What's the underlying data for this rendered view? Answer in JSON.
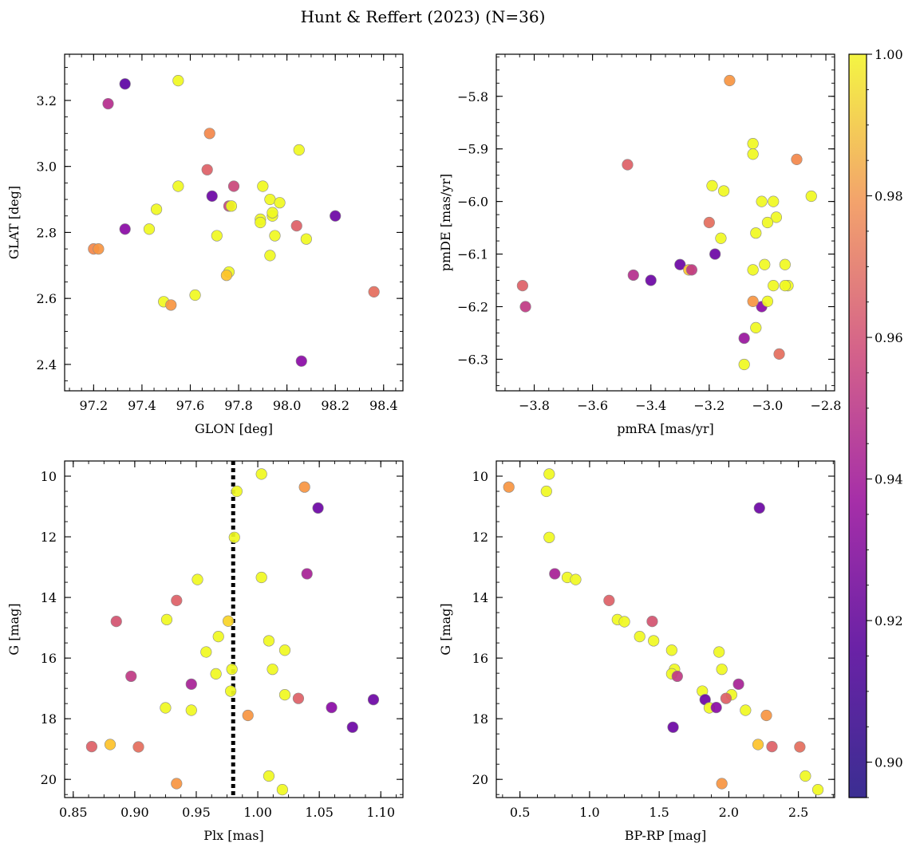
{
  "figure_title": "Hunt & Reffert (2023) (N=36)",
  "colors": {
    "colormap": "plasma",
    "marker_edge": "#8a8a8a",
    "vertical_line": "#000000"
  },
  "colorbar": {
    "range": [
      0.895,
      1.0
    ],
    "ticks": [
      0.9,
      0.92,
      0.94,
      0.96,
      0.98,
      1.0
    ],
    "tick_labels": [
      "0.90",
      "0.92",
      "0.94",
      "0.96",
      "0.98",
      "1.00"
    ]
  },
  "chart_data": [
    {
      "type": "scatter",
      "id": "glon-glat",
      "xlabel": "GLON [deg]",
      "ylabel": "GLAT [deg]",
      "xlim": [
        97.08,
        98.48
      ],
      "ylim": [
        2.32,
        3.34
      ],
      "y_inverted": false,
      "xticks": [
        97.2,
        97.4,
        97.6,
        97.8,
        98.0,
        98.2,
        98.4
      ],
      "xtick_labels": [
        "97.2",
        "97.4",
        "97.6",
        "97.8",
        "98.0",
        "98.2",
        "98.4"
      ],
      "yticks": [
        2.4,
        2.6,
        2.8,
        3.0,
        3.2
      ],
      "ytick_labels": [
        "2.4",
        "2.6",
        "2.8",
        "3.0",
        "3.2"
      ],
      "points": [
        {
          "x": 97.33,
          "y": 3.25,
          "c": 0.9
        },
        {
          "x": 97.26,
          "y": 3.19,
          "c": 0.93
        },
        {
          "x": 97.55,
          "y": 3.26,
          "c": 1.0
        },
        {
          "x": 97.68,
          "y": 3.1,
          "c": 0.965
        },
        {
          "x": 98.05,
          "y": 3.05,
          "c": 1.0
        },
        {
          "x": 97.67,
          "y": 2.99,
          "c": 0.95
        },
        {
          "x": 97.78,
          "y": 2.94,
          "c": 0.94
        },
        {
          "x": 97.55,
          "y": 2.94,
          "c": 1.0
        },
        {
          "x": 97.9,
          "y": 2.94,
          "c": 1.0
        },
        {
          "x": 97.69,
          "y": 2.91,
          "c": 0.905
        },
        {
          "x": 97.93,
          "y": 2.9,
          "c": 1.0
        },
        {
          "x": 97.97,
          "y": 2.89,
          "c": 1.0
        },
        {
          "x": 97.46,
          "y": 2.87,
          "c": 1.0
        },
        {
          "x": 97.76,
          "y": 2.88,
          "c": 0.94
        },
        {
          "x": 97.77,
          "y": 2.88,
          "c": 1.0
        },
        {
          "x": 98.2,
          "y": 2.85,
          "c": 0.905
        },
        {
          "x": 97.94,
          "y": 2.85,
          "c": 1.0
        },
        {
          "x": 97.94,
          "y": 2.86,
          "c": 1.0
        },
        {
          "x": 97.89,
          "y": 2.84,
          "c": 1.0
        },
        {
          "x": 97.89,
          "y": 2.83,
          "c": 1.0
        },
        {
          "x": 98.04,
          "y": 2.82,
          "c": 0.95
        },
        {
          "x": 97.43,
          "y": 2.81,
          "c": 1.0
        },
        {
          "x": 97.33,
          "y": 2.81,
          "c": 0.915
        },
        {
          "x": 97.71,
          "y": 2.79,
          "c": 1.0
        },
        {
          "x": 97.95,
          "y": 2.79,
          "c": 1.0
        },
        {
          "x": 98.08,
          "y": 2.78,
          "c": 1.0
        },
        {
          "x": 97.2,
          "y": 2.75,
          "c": 0.965
        },
        {
          "x": 97.22,
          "y": 2.75,
          "c": 0.97
        },
        {
          "x": 97.93,
          "y": 2.73,
          "c": 1.0
        },
        {
          "x": 97.76,
          "y": 2.68,
          "c": 1.0
        },
        {
          "x": 97.75,
          "y": 2.67,
          "c": 0.985
        },
        {
          "x": 97.62,
          "y": 2.61,
          "c": 1.0
        },
        {
          "x": 97.49,
          "y": 2.59,
          "c": 1.0
        },
        {
          "x": 97.52,
          "y": 2.58,
          "c": 0.97
        },
        {
          "x": 98.36,
          "y": 2.62,
          "c": 0.955
        },
        {
          "x": 98.06,
          "y": 2.41,
          "c": 0.915
        }
      ]
    },
    {
      "type": "scatter",
      "id": "pmra-pmde",
      "xlabel": "pmRA [mas/yr]",
      "ylabel": "pmDE [mas/yr]",
      "xlim": [
        -3.93,
        -2.77
      ],
      "ylim": [
        -6.36,
        -5.72
      ],
      "y_inverted": false,
      "xticks": [
        -3.8,
        -3.6,
        -3.4,
        -3.2,
        -3.0,
        -2.8
      ],
      "xtick_labels": [
        "−3.8",
        "−3.6",
        "−3.4",
        "−3.2",
        "−3.0",
        "−2.8"
      ],
      "yticks": [
        -6.3,
        -6.2,
        -6.1,
        -6.0,
        -5.9,
        -5.8
      ],
      "ytick_labels": [
        "−6.3",
        "−6.2",
        "−6.1",
        "−6.0",
        "−5.9",
        "−5.8"
      ],
      "points": [
        {
          "x": -3.13,
          "y": -5.77,
          "c": 0.97
        },
        {
          "x": -3.05,
          "y": -5.89,
          "c": 1.0
        },
        {
          "x": -3.05,
          "y": -5.91,
          "c": 1.0
        },
        {
          "x": -2.9,
          "y": -5.92,
          "c": 0.965
        },
        {
          "x": -3.48,
          "y": -5.93,
          "c": 0.95
        },
        {
          "x": -3.19,
          "y": -5.97,
          "c": 1.0
        },
        {
          "x": -3.15,
          "y": -5.98,
          "c": 1.0
        },
        {
          "x": -2.85,
          "y": -5.99,
          "c": 1.0
        },
        {
          "x": -3.02,
          "y": -6.0,
          "c": 1.0
        },
        {
          "x": -2.98,
          "y": -6.0,
          "c": 1.0
        },
        {
          "x": -2.97,
          "y": -6.03,
          "c": 1.0
        },
        {
          "x": -3.0,
          "y": -6.04,
          "c": 1.0
        },
        {
          "x": -3.2,
          "y": -6.04,
          "c": 0.955
        },
        {
          "x": -3.04,
          "y": -6.06,
          "c": 1.0
        },
        {
          "x": -3.16,
          "y": -6.07,
          "c": 1.0
        },
        {
          "x": -3.18,
          "y": -6.1,
          "c": 0.905
        },
        {
          "x": -3.3,
          "y": -6.12,
          "c": 0.905
        },
        {
          "x": -2.94,
          "y": -6.12,
          "c": 1.0
        },
        {
          "x": -3.01,
          "y": -6.12,
          "c": 1.0
        },
        {
          "x": -3.27,
          "y": -6.13,
          "c": 0.985
        },
        {
          "x": -3.26,
          "y": -6.13,
          "c": 0.935
        },
        {
          "x": -3.05,
          "y": -6.13,
          "c": 1.0
        },
        {
          "x": -3.46,
          "y": -6.14,
          "c": 0.93
        },
        {
          "x": -3.4,
          "y": -6.15,
          "c": 0.905
        },
        {
          "x": -3.84,
          "y": -6.16,
          "c": 0.95
        },
        {
          "x": -2.98,
          "y": -6.16,
          "c": 1.0
        },
        {
          "x": -2.93,
          "y": -6.16,
          "c": 1.0
        },
        {
          "x": -2.94,
          "y": -6.16,
          "c": 1.0
        },
        {
          "x": -3.02,
          "y": -6.2,
          "c": 0.915
        },
        {
          "x": -3.05,
          "y": -6.19,
          "c": 0.97
        },
        {
          "x": -3.0,
          "y": -6.19,
          "c": 1.0
        },
        {
          "x": -3.83,
          "y": -6.2,
          "c": 0.935
        },
        {
          "x": -3.04,
          "y": -6.24,
          "c": 1.0
        },
        {
          "x": -3.08,
          "y": -6.26,
          "c": 0.92
        },
        {
          "x": -2.96,
          "y": -6.29,
          "c": 0.955
        },
        {
          "x": -3.08,
          "y": -6.31,
          "c": 1.0
        }
      ]
    },
    {
      "type": "scatter",
      "id": "plx-g",
      "xlabel": "Plx [mas]",
      "ylabel": "G [mag]",
      "xlim": [
        0.843,
        1.118
      ],
      "ylim": [
        20.6,
        9.5
      ],
      "y_inverted": true,
      "vline": 0.98,
      "xticks": [
        0.85,
        0.9,
        0.95,
        1.0,
        1.05,
        1.1
      ],
      "xtick_labels": [
        "0.85",
        "0.90",
        "0.95",
        "1.00",
        "1.05",
        "1.10"
      ],
      "yticks": [
        10,
        12,
        14,
        16,
        18,
        20
      ],
      "ytick_labels": [
        "10",
        "12",
        "14",
        "16",
        "18",
        "20"
      ],
      "points": [
        {
          "x": 1.003,
          "y": 9.93,
          "c": 1.0
        },
        {
          "x": 1.038,
          "y": 10.36,
          "c": 0.97
        },
        {
          "x": 0.983,
          "y": 10.5,
          "c": 1.0
        },
        {
          "x": 1.049,
          "y": 11.05,
          "c": 0.905
        },
        {
          "x": 0.981,
          "y": 12.02,
          "c": 1.0
        },
        {
          "x": 1.04,
          "y": 13.22,
          "c": 0.925
        },
        {
          "x": 1.003,
          "y": 13.34,
          "c": 1.0
        },
        {
          "x": 0.951,
          "y": 13.41,
          "c": 1.0
        },
        {
          "x": 0.934,
          "y": 14.1,
          "c": 0.95
        },
        {
          "x": 0.926,
          "y": 14.73,
          "c": 1.0
        },
        {
          "x": 0.976,
          "y": 14.78,
          "c": 0.99
        },
        {
          "x": 0.885,
          "y": 14.79,
          "c": 0.945
        },
        {
          "x": 0.968,
          "y": 15.29,
          "c": 1.0
        },
        {
          "x": 1.009,
          "y": 15.43,
          "c": 1.0
        },
        {
          "x": 0.958,
          "y": 15.8,
          "c": 1.0
        },
        {
          "x": 1.022,
          "y": 15.74,
          "c": 1.0
        },
        {
          "x": 0.979,
          "y": 16.37,
          "c": 1.0
        },
        {
          "x": 1.012,
          "y": 16.37,
          "c": 1.0
        },
        {
          "x": 0.966,
          "y": 16.52,
          "c": 1.0
        },
        {
          "x": 0.897,
          "y": 16.6,
          "c": 0.935
        },
        {
          "x": 0.946,
          "y": 16.86,
          "c": 0.925
        },
        {
          "x": 0.978,
          "y": 17.09,
          "c": 1.0
        },
        {
          "x": 1.022,
          "y": 17.21,
          "c": 1.0
        },
        {
          "x": 1.033,
          "y": 17.33,
          "c": 0.95
        },
        {
          "x": 1.094,
          "y": 17.37,
          "c": 0.905
        },
        {
          "x": 0.925,
          "y": 17.64,
          "c": 1.0
        },
        {
          "x": 1.06,
          "y": 17.63,
          "c": 0.915
        },
        {
          "x": 0.946,
          "y": 17.72,
          "c": 1.0
        },
        {
          "x": 0.992,
          "y": 17.89,
          "c": 0.97
        },
        {
          "x": 1.077,
          "y": 18.28,
          "c": 0.905
        },
        {
          "x": 0.88,
          "y": 18.85,
          "c": 0.985
        },
        {
          "x": 0.865,
          "y": 18.92,
          "c": 0.95
        },
        {
          "x": 0.903,
          "y": 18.93,
          "c": 0.955
        },
        {
          "x": 1.009,
          "y": 19.89,
          "c": 1.0
        },
        {
          "x": 0.934,
          "y": 20.14,
          "c": 0.97
        },
        {
          "x": 1.02,
          "y": 20.34,
          "c": 1.0
        }
      ]
    },
    {
      "type": "scatter",
      "id": "bprp-g",
      "xlabel": "BP-RP [mag]",
      "ylabel": "G [mag]",
      "xlim": [
        0.33,
        2.76
      ],
      "ylim": [
        20.6,
        9.5
      ],
      "y_inverted": true,
      "xticks": [
        0.5,
        1.0,
        1.5,
        2.0,
        2.5
      ],
      "xtick_labels": [
        "0.5",
        "1.0",
        "1.5",
        "2.0",
        "2.5"
      ],
      "yticks": [
        10,
        12,
        14,
        16,
        18,
        20
      ],
      "ytick_labels": [
        "10",
        "12",
        "14",
        "16",
        "18",
        "20"
      ],
      "points": [
        {
          "x": 0.71,
          "y": 9.93,
          "c": 1.0
        },
        {
          "x": 0.42,
          "y": 10.36,
          "c": 0.97
        },
        {
          "x": 0.69,
          "y": 10.5,
          "c": 1.0
        },
        {
          "x": 2.22,
          "y": 11.05,
          "c": 0.905
        },
        {
          "x": 0.71,
          "y": 12.02,
          "c": 1.0
        },
        {
          "x": 0.75,
          "y": 13.22,
          "c": 0.925
        },
        {
          "x": 0.84,
          "y": 13.34,
          "c": 1.0
        },
        {
          "x": 0.9,
          "y": 13.41,
          "c": 1.0
        },
        {
          "x": 1.14,
          "y": 14.1,
          "c": 0.95
        },
        {
          "x": 1.2,
          "y": 14.73,
          "c": 1.0
        },
        {
          "x": 1.25,
          "y": 14.8,
          "c": 1.0
        },
        {
          "x": 1.45,
          "y": 14.79,
          "c": 0.945
        },
        {
          "x": 1.36,
          "y": 15.29,
          "c": 1.0
        },
        {
          "x": 1.46,
          "y": 15.43,
          "c": 1.0
        },
        {
          "x": 1.59,
          "y": 15.74,
          "c": 1.0
        },
        {
          "x": 1.93,
          "y": 15.8,
          "c": 1.0
        },
        {
          "x": 1.61,
          "y": 16.37,
          "c": 1.0
        },
        {
          "x": 1.95,
          "y": 16.37,
          "c": 1.0
        },
        {
          "x": 1.59,
          "y": 16.52,
          "c": 1.0
        },
        {
          "x": 1.63,
          "y": 16.6,
          "c": 0.935
        },
        {
          "x": 2.07,
          "y": 16.86,
          "c": 0.925
        },
        {
          "x": 1.81,
          "y": 17.09,
          "c": 1.0
        },
        {
          "x": 2.02,
          "y": 17.21,
          "c": 1.0
        },
        {
          "x": 1.98,
          "y": 17.33,
          "c": 0.95
        },
        {
          "x": 1.83,
          "y": 17.37,
          "c": 0.905
        },
        {
          "x": 1.86,
          "y": 17.64,
          "c": 1.0
        },
        {
          "x": 1.91,
          "y": 17.63,
          "c": 0.915
        },
        {
          "x": 2.12,
          "y": 17.72,
          "c": 1.0
        },
        {
          "x": 2.27,
          "y": 17.89,
          "c": 0.97
        },
        {
          "x": 1.6,
          "y": 18.28,
          "c": 0.905
        },
        {
          "x": 2.21,
          "y": 18.85,
          "c": 0.985
        },
        {
          "x": 2.31,
          "y": 18.92,
          "c": 0.95
        },
        {
          "x": 2.51,
          "y": 18.93,
          "c": 0.955
        },
        {
          "x": 2.55,
          "y": 19.89,
          "c": 1.0
        },
        {
          "x": 1.95,
          "y": 20.14,
          "c": 0.97
        },
        {
          "x": 2.64,
          "y": 20.34,
          "c": 1.0
        }
      ]
    }
  ]
}
